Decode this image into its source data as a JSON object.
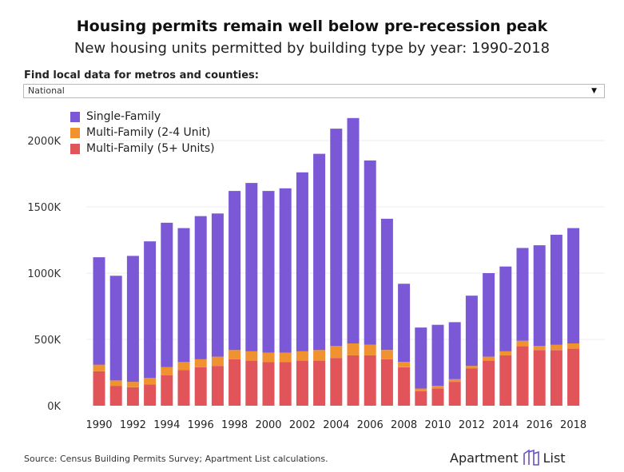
{
  "header": {
    "title": "Housing permits remain well below pre-recession peak",
    "subtitle": "New housing units permitted by building type by year: 1990-2018"
  },
  "filter": {
    "label": "Find local data for metros and counties:",
    "selected": "National"
  },
  "footer": {
    "source": "Source: Census Building Permits Survey; Apartment List calculations.",
    "logo_text_1": "Apartment",
    "logo_text_2": "List"
  },
  "colors": {
    "single_family": "#7b59d6",
    "multi_2_4": "#ef922f",
    "multi_5_plus": "#e0545a"
  },
  "chart_data": {
    "type": "bar",
    "stacked": true,
    "x": [
      1990,
      1991,
      1992,
      1993,
      1994,
      1995,
      1996,
      1997,
      1998,
      1999,
      2000,
      2001,
      2002,
      2003,
      2004,
      2005,
      2006,
      2007,
      2008,
      2009,
      2010,
      2011,
      2012,
      2013,
      2014,
      2015,
      2016,
      2017,
      2018
    ],
    "x_tick_labels": [
      "1990",
      "1992",
      "1994",
      "1996",
      "1998",
      "2000",
      "2002",
      "2004",
      "2006",
      "2008",
      "2010",
      "2012",
      "2014",
      "2016",
      "2018"
    ],
    "y_tick_labels": [
      "0K",
      "500K",
      "1000K",
      "1500K",
      "2000K"
    ],
    "y_ticks": [
      0,
      500000,
      1000000,
      1500000,
      2000000
    ],
    "ylim": [
      0,
      2250000
    ],
    "legend_position": "top-left",
    "grid": true,
    "series": [
      {
        "name": "Multi-Family (5+ Units)",
        "color": "#e0545a",
        "values": [
          260000,
          150000,
          140000,
          160000,
          230000,
          270000,
          290000,
          300000,
          350000,
          340000,
          330000,
          330000,
          340000,
          340000,
          360000,
          380000,
          380000,
          350000,
          290000,
          110000,
          130000,
          180000,
          280000,
          340000,
          380000,
          450000,
          420000,
          420000,
          430000
        ]
      },
      {
        "name": "Multi-Family (2-4 Unit)",
        "color": "#ef922f",
        "values": [
          50000,
          40000,
          40000,
          50000,
          60000,
          60000,
          60000,
          70000,
          70000,
          70000,
          70000,
          70000,
          70000,
          80000,
          90000,
          90000,
          80000,
          70000,
          40000,
          20000,
          20000,
          20000,
          20000,
          30000,
          30000,
          40000,
          30000,
          40000,
          40000
        ]
      },
      {
        "name": "Single-Family",
        "color": "#7b59d6",
        "values": [
          810000,
          790000,
          950000,
          1030000,
          1090000,
          1010000,
          1080000,
          1080000,
          1200000,
          1270000,
          1220000,
          1240000,
          1350000,
          1480000,
          1640000,
          1700000,
          1390000,
          990000,
          590000,
          460000,
          460000,
          430000,
          530000,
          630000,
          640000,
          700000,
          760000,
          830000,
          870000
        ]
      }
    ],
    "legend_order": [
      "Single-Family",
      "Multi-Family (2-4 Unit)",
      "Multi-Family (5+ Units)"
    ]
  }
}
